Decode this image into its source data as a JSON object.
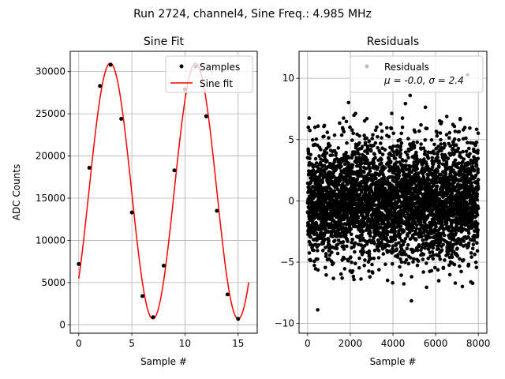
{
  "suptitle": "Run 2724, channel4, Sine Freq.: 4.985 MHz",
  "chart_data": [
    {
      "type": "line",
      "title": "Sine Fit",
      "xlabel": "Sample #",
      "ylabel": "ADC Counts",
      "xlim": [
        -0.8,
        16.8
      ],
      "ylim": [
        -1000,
        32400
      ],
      "xticks": [
        0,
        5,
        10,
        15
      ],
      "yticks": [
        0,
        5000,
        10000,
        15000,
        20000,
        25000,
        30000
      ],
      "grid": true,
      "legend": {
        "location": "top-right",
        "entries": [
          "Samples",
          "Sine fit"
        ]
      },
      "fit": {
        "offset": 15850,
        "amplitude": 15150,
        "period": 8.025,
        "phase_x": 2.97,
        "x_start": 0,
        "x_end": 16
      },
      "series": [
        {
          "name": "Samples",
          "style": "scatter",
          "color": "#000000",
          "x": [
            0,
            1,
            2,
            3,
            4,
            5,
            6,
            7,
            8,
            9,
            10,
            11,
            12,
            13,
            14,
            15
          ],
          "y": [
            7200,
            18600,
            28300,
            30800,
            24400,
            13300,
            3400,
            900,
            7000,
            18300,
            27900,
            30600,
            24700,
            13500,
            3600,
            700
          ]
        },
        {
          "name": "Sine fit",
          "style": "line",
          "color": "#ff0000"
        }
      ]
    },
    {
      "type": "scatter",
      "title": "Residuals",
      "xlabel": "Sample #",
      "ylabel": "",
      "xlim": [
        -400,
        8400
      ],
      "ylim": [
        -10.8,
        12.2
      ],
      "xticks": [
        0,
        2000,
        4000,
        6000,
        8000
      ],
      "yticks": [
        -10,
        -5,
        0,
        5,
        10
      ],
      "grid": true,
      "legend": {
        "location": "top-right",
        "entries": [
          "Residuals",
          "μ = -0.0, σ = 2.4"
        ]
      },
      "series": [
        {
          "name": "Residuals",
          "color": "#000000",
          "n_points": 8000,
          "mean": 0.0,
          "std": 2.4
        }
      ]
    }
  ]
}
